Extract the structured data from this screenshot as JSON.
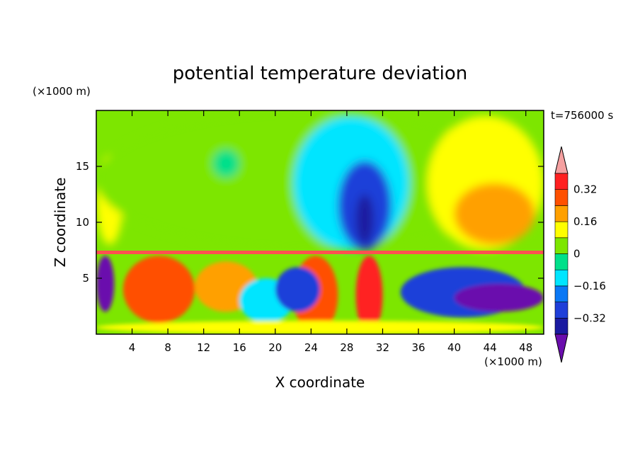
{
  "chart_data": {
    "type": "heatmap",
    "title": "potential temperature deviation",
    "xlabel": "X coordinate",
    "ylabel": "Z coordinate",
    "x_unit": "(×1000 m)",
    "y_unit": "(×1000 m)",
    "time_label": "t=756000 s",
    "xlim": [
      0,
      50
    ],
    "ylim": [
      0,
      20
    ],
    "x_ticks": [
      4,
      8,
      12,
      16,
      20,
      24,
      28,
      32,
      36,
      40,
      44,
      48
    ],
    "y_ticks": [
      5,
      10,
      15
    ],
    "colorbar": {
      "levels": [
        {
          "max": -0.32,
          "color": "#6a0dad"
        },
        {
          "max": -0.24,
          "color": "#1a1aa0"
        },
        {
          "max": -0.16,
          "color": "#1f3fd9"
        },
        {
          "max": -0.08,
          "color": "#0a78f5"
        },
        {
          "max": 0.0,
          "color": "#00e5ff"
        },
        {
          "max": 0.08,
          "color": "#00e08a"
        },
        {
          "max": 0.16,
          "color": "#7de600"
        },
        {
          "max": 0.24,
          "color": "#ffff00"
        },
        {
          "max": 0.32,
          "color": "#ffa000"
        },
        {
          "max": 0.4,
          "color": "#ff5000"
        },
        {
          "max": 0.48,
          "color": "#ff2020"
        },
        {
          "max": 99,
          "color": "#f5a0a0"
        }
      ],
      "tick_labels": [
        {
          "value": 0.32,
          "label": "0.32"
        },
        {
          "value": 0.16,
          "label": "0.16"
        },
        {
          "value": 0.0,
          "label": "0"
        },
        {
          "value": -0.16,
          "label": "−0.16"
        },
        {
          "value": -0.32,
          "label": "−0.32"
        }
      ],
      "range": [
        -0.4,
        0.4
      ]
    },
    "field_regions": [
      {
        "name": "upper-left-yellow",
        "x": [
          0,
          3
        ],
        "z": [
          8,
          16
        ],
        "value": 0.2
      },
      {
        "name": "upper-green-band",
        "x": [
          0,
          48
        ],
        "z": [
          7.5,
          20
        ],
        "value": 0.1
      },
      {
        "name": "upper-green-blob",
        "x": [
          13,
          16
        ],
        "z": [
          14,
          16.5
        ],
        "value": 0.05
      },
      {
        "name": "upper-cyan-plume",
        "x": [
          22,
          35
        ],
        "z": [
          7.5,
          19.5
        ],
        "value": -0.05
      },
      {
        "name": "upper-blue-core",
        "x": [
          27,
          33
        ],
        "z": [
          7.5,
          15.5
        ],
        "value": -0.2
      },
      {
        "name": "upper-darkblue-core",
        "x": [
          29,
          31
        ],
        "z": [
          8,
          12.5
        ],
        "value": -0.3
      },
      {
        "name": "upper-right-yellow",
        "x": [
          37,
          50
        ],
        "z": [
          7.5,
          19.5
        ],
        "value": 0.2
      },
      {
        "name": "upper-right-orange",
        "x": [
          40,
          49
        ],
        "z": [
          8,
          13.5
        ],
        "value": 0.28
      },
      {
        "name": "lower-left-purple",
        "x": [
          0,
          2
        ],
        "z": [
          2,
          7
        ],
        "value": -0.38
      },
      {
        "name": "lower-left-orange-red",
        "x": [
          3,
          11
        ],
        "z": [
          1,
          7
        ],
        "value": 0.35
      },
      {
        "name": "lower-mid-orange",
        "x": [
          11,
          18
        ],
        "z": [
          2,
          6.5
        ],
        "value": 0.3
      },
      {
        "name": "lower-cyan-trough",
        "x": [
          16,
          22
        ],
        "z": [
          1,
          5
        ],
        "value": -0.05
      },
      {
        "name": "lower-red-plume",
        "x": [
          22,
          27
        ],
        "z": [
          0,
          7
        ],
        "value": 0.4
      },
      {
        "name": "lower-blue-cell",
        "x": [
          20,
          25
        ],
        "z": [
          2,
          6
        ],
        "value": -0.2
      },
      {
        "name": "lower-red-column",
        "x": [
          29,
          32
        ],
        "z": [
          0,
          7
        ],
        "value": 0.45
      },
      {
        "name": "lower-right-blue",
        "x": [
          34,
          48
        ],
        "z": [
          1.5,
          6
        ],
        "value": -0.2
      },
      {
        "name": "lower-right-purple",
        "x": [
          40,
          50
        ],
        "z": [
          2,
          4.5
        ],
        "value": -0.38
      },
      {
        "name": "surface-yellow-band",
        "x": [
          0,
          50
        ],
        "z": [
          0,
          1.2
        ],
        "value": 0.2
      }
    ]
  }
}
